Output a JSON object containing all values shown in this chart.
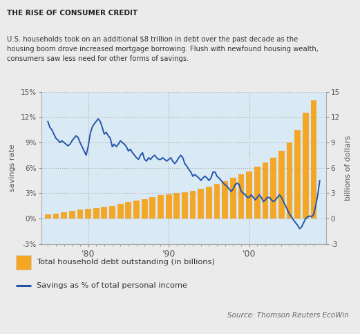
{
  "title": "THE RISE OF CONSUMER CREDIT",
  "subtitle": "U.S. households took on an additional $8 trillion in debt over the past decade as the\nhousing boom drove increased mortgage borrowing. Flush with newfound housing wealth,\nconsumers saw less need for other forms of savings.",
  "source": "Source: Thomson Reuters EcoWin",
  "ylabel_left": "savings rate",
  "ylabel_right": "billions of dollars",
  "ylim_left": [
    -3,
    15
  ],
  "ylim_right": [
    -3,
    15
  ],
  "yticks_left": [
    -3,
    0,
    3,
    6,
    9,
    12,
    15
  ],
  "ytick_labels_left": [
    "-3%",
    "0%",
    "3%",
    "6%",
    "9%",
    "12%",
    "15%"
  ],
  "ytick_labels_right": [
    "-3",
    "0",
    "3",
    "6",
    "9",
    "12",
    "15"
  ],
  "background_color": "#ebebeb",
  "title_bg_color": "#d0d0d0",
  "chart_bg_color": "#daeaf5",
  "bar_color": "#f5a623",
  "line_color": "#2255aa",
  "years_bars": [
    1975,
    1976,
    1977,
    1978,
    1979,
    1980,
    1981,
    1982,
    1983,
    1984,
    1985,
    1986,
    1987,
    1988,
    1989,
    1990,
    1991,
    1992,
    1993,
    1994,
    1995,
    1996,
    1997,
    1998,
    1999,
    2000,
    2001,
    2002,
    2003,
    2004,
    2005,
    2006,
    2007,
    2008
  ],
  "debt_values": [
    0.5,
    0.6,
    0.75,
    0.9,
    1.05,
    1.15,
    1.25,
    1.35,
    1.5,
    1.7,
    1.95,
    2.1,
    2.3,
    2.55,
    2.75,
    2.9,
    3.0,
    3.1,
    3.3,
    3.55,
    3.8,
    4.1,
    4.45,
    4.8,
    5.2,
    5.6,
    6.1,
    6.6,
    7.2,
    8.0,
    9.0,
    10.5,
    12.5,
    14.0
  ],
  "xticks": [
    1980,
    1990,
    2000
  ],
  "xtick_labels": [
    "'80",
    "'90",
    "'00"
  ]
}
